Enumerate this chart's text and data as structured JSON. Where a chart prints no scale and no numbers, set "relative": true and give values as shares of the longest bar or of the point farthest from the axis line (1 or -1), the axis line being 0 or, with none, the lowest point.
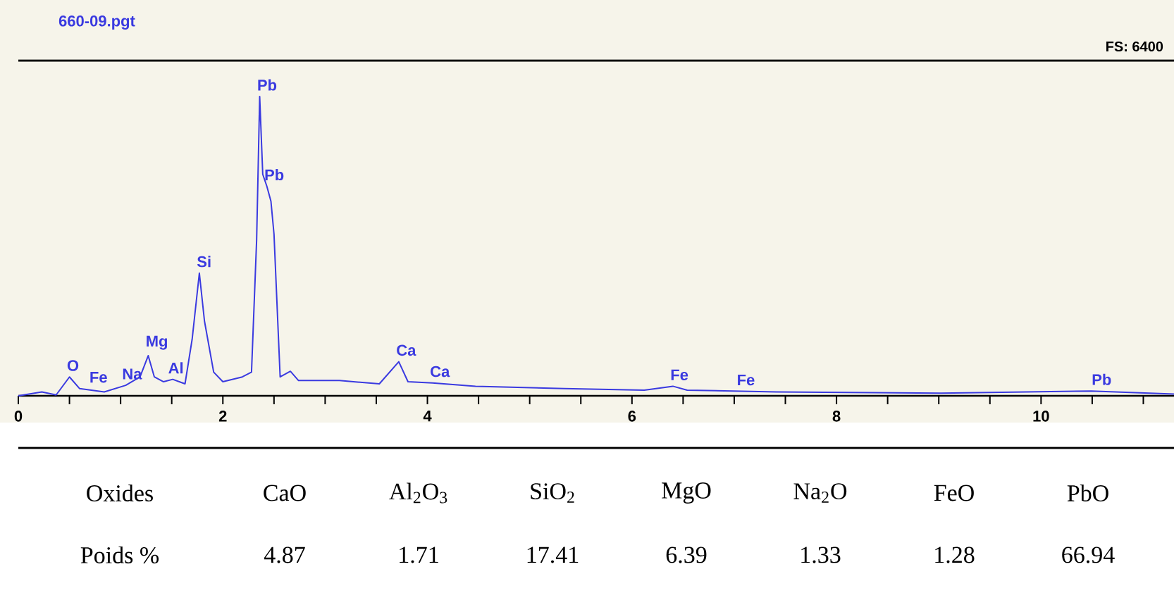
{
  "chart_data": [
    {
      "type": "line",
      "title": "660-09.pgt",
      "relative": true,
      "x": [
        0,
        0.23,
        0.37,
        0.5,
        0.6,
        0.84,
        1.05,
        1.19,
        1.27,
        1.33,
        1.42,
        1.51,
        1.63,
        1.7,
        1.77,
        1.82,
        1.91,
        2.0,
        2.19,
        2.28,
        2.33,
        2.36,
        2.39,
        2.43,
        2.47,
        2.5,
        2.56,
        2.66,
        2.74,
        3.14,
        3.53,
        3.72,
        3.81,
        4.05,
        4.47,
        5.34,
        6.12,
        6.4,
        6.54,
        7.41,
        9.02,
        10.49,
        11.3
      ],
      "series": [
        {
          "color": "#3a3ae0",
          "values": [
            0,
            0.013,
            0.003,
            0.063,
            0.024,
            0.013,
            0.035,
            0.063,
            0.134,
            0.063,
            0.047,
            0.055,
            0.04,
            0.19,
            0.41,
            0.25,
            0.079,
            0.047,
            0.063,
            0.079,
            0.52,
            1.0,
            0.74,
            0.7,
            0.65,
            0.54,
            0.063,
            0.082,
            0.051,
            0.051,
            0.04,
            0.114,
            0.047,
            0.043,
            0.032,
            0.024,
            0.019,
            0.032,
            0.019,
            0.013,
            0.009,
            0.016,
            0.006
          ]
        }
      ],
      "xlim": [
        0,
        11.3
      ],
      "xticks": [
        0,
        {
          "value": 0.5,
          "label": null
        },
        {
          "value": 1,
          "label": null
        },
        {
          "value": 1.5,
          "label": null
        },
        2,
        {
          "value": 2.5,
          "label": null
        },
        {
          "value": 3,
          "label": null
        },
        {
          "value": 3.5,
          "label": null
        },
        4,
        {
          "value": 4.5,
          "label": null
        },
        {
          "value": 5,
          "label": null
        },
        {
          "value": 5.5,
          "label": null
        },
        6,
        {
          "value": 6.5,
          "label": null
        },
        {
          "value": 7,
          "label": null
        },
        {
          "value": 7.5,
          "label": null
        },
        8,
        {
          "value": 8.5,
          "label": null
        },
        {
          "value": 9,
          "label": null
        },
        {
          "value": 9.5,
          "label": null
        },
        10,
        {
          "value": 10.5,
          "label": null
        },
        {
          "value": 11,
          "label": null
        }
      ],
      "annotations": [
        {
          "text": "O",
          "x": 0.5,
          "y": 0.063
        },
        {
          "text": "Fe",
          "x": 0.72,
          "y": 0.024
        },
        {
          "text": "Na",
          "x": 1.04,
          "y": 0.035
        },
        {
          "text": "Mg",
          "x": 1.27,
          "y": 0.134
        },
        {
          "text": "Al",
          "x": 1.49,
          "y": 0.055
        },
        {
          "text": "Si",
          "x": 1.77,
          "y": 0.41
        },
        {
          "text": "Pb",
          "x": 2.36,
          "y": 1.0
        },
        {
          "text": "Pb",
          "x": 2.43,
          "y": 0.7
        },
        {
          "text": "Ca",
          "x": 3.72,
          "y": 0.114
        },
        {
          "text": "Ca",
          "x": 4.05,
          "y": 0.043
        },
        {
          "text": "Fe",
          "x": 6.4,
          "y": 0.032
        },
        {
          "text": "Fe",
          "x": 7.05,
          "y": 0.015
        },
        {
          "text": "Pb",
          "x": 10.52,
          "y": 0.016
        },
        "FS: 6400"
      ]
    },
    {
      "type": "other",
      "xlabel": "Oxides",
      "ylabel": "Poids %",
      "categories": [
        "CaO",
        "Al$_{2}$O$_{3}$",
        "SiO$_{2}$",
        "MgO",
        "Na$_{2}$O",
        "FeO",
        "PbO"
      ],
      "values": [
        4.87,
        1.71,
        17.41,
        6.39,
        1.33,
        1.28,
        66.94
      ],
      "data_labels": true
    }
  ]
}
